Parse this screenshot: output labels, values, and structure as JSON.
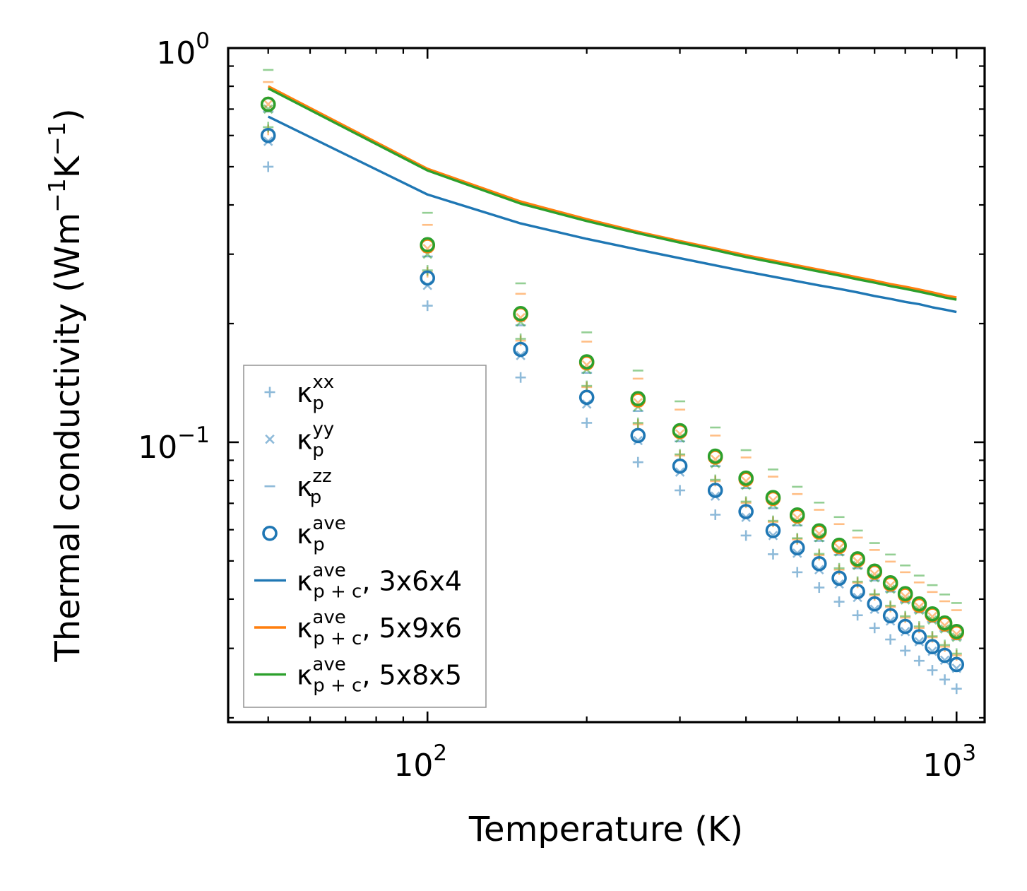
{
  "chart_data": {
    "type": "scatter",
    "xscale": "log",
    "yscale": "log",
    "xlim": [
      42,
      1130
    ],
    "ylim": [
      0.0195,
      1.0
    ],
    "xlabel": "Temperature (K)",
    "ylabel": "Thermal conductivity (Wm⁻¹K⁻¹)",
    "ylabel_parts": {
      "base": "Thermal conductivity (Wm",
      "sup1": "−1",
      "mid": "K",
      "sup2": "−1",
      "end": ")"
    },
    "xticks": [
      {
        "base": "10",
        "exp": "2",
        "value": 100
      },
      {
        "base": "10",
        "exp": "3",
        "value": 1000
      }
    ],
    "yticks": [
      {
        "base": "10",
        "exp": "0",
        "value": 1.0
      },
      {
        "base": "10",
        "exp": "−1",
        "value": 0.1
      }
    ],
    "x": [
      50,
      100,
      150,
      200,
      250,
      300,
      350,
      400,
      450,
      500,
      550,
      600,
      650,
      700,
      750,
      800,
      850,
      900,
      950,
      1000
    ],
    "colors": {
      "blue": "#1f77b4",
      "orange": "#ff7f0e",
      "green": "#2ca02c"
    },
    "series": [
      {
        "name": "kxx",
        "marker": "plus",
        "color": "blue",
        "alpha": 0.5,
        "values": [
          0.5,
          0.222,
          0.146,
          0.112,
          0.089,
          0.0755,
          0.0655,
          0.058,
          0.052,
          0.0468,
          0.0428,
          0.0394,
          0.0364,
          0.0338,
          0.0316,
          0.0296,
          0.0279,
          0.0264,
          0.025,
          0.0237
        ]
      },
      {
        "name": "kyy",
        "marker": "x",
        "color": "blue",
        "alpha": 0.5,
        "values": [
          0.58,
          0.25,
          0.166,
          0.125,
          0.101,
          0.084,
          0.073,
          0.0645,
          0.058,
          0.0523,
          0.0475,
          0.0437,
          0.0404,
          0.0377,
          0.0352,
          0.0331,
          0.0312,
          0.0295,
          0.028,
          0.0267
        ]
      },
      {
        "name": "kzz",
        "marker": "dash",
        "color": "blue",
        "alpha": 0.5,
        "values": [
          0.69,
          0.296,
          0.198,
          0.15,
          0.12,
          0.1005,
          0.087,
          0.0765,
          0.068,
          0.0615,
          0.0562,
          0.0518,
          0.0479,
          0.0446,
          0.0418,
          0.0393,
          0.037,
          0.035,
          0.0332,
          0.0316
        ]
      },
      {
        "name": "kave",
        "marker": "circle",
        "color": "blue",
        "alpha": 1.0,
        "values": [
          0.6,
          0.261,
          0.172,
          0.13,
          0.104,
          0.087,
          0.0755,
          0.0667,
          0.0597,
          0.054,
          0.0492,
          0.0452,
          0.0418,
          0.0389,
          0.0363,
          0.0341,
          0.0321,
          0.0303,
          0.0288,
          0.0273
        ]
      },
      {
        "name": "kxx",
        "marker": "plus",
        "color": "orange",
        "alpha": 0.5,
        "values": [
          0.62,
          0.27,
          0.181,
          0.138,
          0.111,
          0.0925,
          0.0797,
          0.0702,
          0.0628,
          0.0567,
          0.0517,
          0.0475,
          0.044,
          0.0409,
          0.0382,
          0.0359,
          0.0338,
          0.032,
          0.0303,
          0.0288
        ]
      },
      {
        "name": "kyy",
        "marker": "x",
        "color": "orange",
        "alpha": 0.5,
        "values": [
          0.72,
          0.31,
          0.207,
          0.157,
          0.126,
          0.105,
          0.0905,
          0.0797,
          0.0712,
          0.0643,
          0.0586,
          0.0539,
          0.0498,
          0.0463,
          0.0433,
          0.0406,
          0.0382,
          0.0361,
          0.0343,
          0.0326
        ]
      },
      {
        "name": "kzz",
        "marker": "dash",
        "color": "orange",
        "alpha": 0.5,
        "values": [
          0.82,
          0.356,
          0.238,
          0.18,
          0.145,
          0.121,
          0.104,
          0.0915,
          0.0818,
          0.0739,
          0.0674,
          0.062,
          0.0573,
          0.0533,
          0.0498,
          0.0468,
          0.0441,
          0.0417,
          0.0395,
          0.0375
        ]
      },
      {
        "name": "kave",
        "marker": "circle",
        "color": "orange",
        "alpha": 1.0,
        "values": [
          0.72,
          0.315,
          0.211,
          0.159,
          0.128,
          0.1065,
          0.0917,
          0.0806,
          0.072,
          0.065,
          0.0592,
          0.0544,
          0.0503,
          0.0468,
          0.0437,
          0.041,
          0.0386,
          0.0365,
          0.0346,
          0.0329
        ]
      },
      {
        "name": "kxx",
        "marker": "plus",
        "color": "green",
        "alpha": 0.5,
        "values": [
          0.63,
          0.273,
          0.183,
          0.139,
          0.112,
          0.0932,
          0.0803,
          0.0707,
          0.0632,
          0.0571,
          0.0521,
          0.0479,
          0.0443,
          0.0412,
          0.0385,
          0.0362,
          0.0341,
          0.0322,
          0.0306,
          0.0291
        ]
      },
      {
        "name": "kyy",
        "marker": "x",
        "color": "green",
        "alpha": 0.5,
        "values": [
          0.7,
          0.3,
          0.202,
          0.153,
          0.123,
          0.1025,
          0.0883,
          0.0778,
          0.0695,
          0.0628,
          0.0573,
          0.0527,
          0.0487,
          0.0453,
          0.0424,
          0.0398,
          0.0375,
          0.0354,
          0.0336,
          0.032
        ]
      },
      {
        "name": "kzz",
        "marker": "dash",
        "color": "green",
        "alpha": 0.5,
        "values": [
          0.88,
          0.382,
          0.253,
          0.19,
          0.152,
          0.127,
          0.109,
          0.0955,
          0.0853,
          0.0771,
          0.0703,
          0.0646,
          0.0597,
          0.0555,
          0.0519,
          0.0487,
          0.0459,
          0.0434,
          0.0411,
          0.0391
        ]
      },
      {
        "name": "kave",
        "marker": "circle",
        "color": "green",
        "alpha": 1.0,
        "values": [
          0.72,
          0.317,
          0.212,
          0.16,
          0.129,
          0.107,
          0.0922,
          0.0811,
          0.0724,
          0.0654,
          0.0596,
          0.0548,
          0.0506,
          0.0471,
          0.044,
          0.0413,
          0.0389,
          0.0367,
          0.0348,
          0.0331
        ]
      },
      {
        "name": "kpc_364",
        "marker": "line",
        "color": "blue",
        "alpha": 1.0,
        "values": [
          0.67,
          0.425,
          0.359,
          0.328,
          0.308,
          0.293,
          0.281,
          0.271,
          0.263,
          0.256,
          0.25,
          0.245,
          0.24,
          0.235,
          0.231,
          0.227,
          0.224,
          0.22,
          0.217,
          0.214
        ]
      },
      {
        "name": "kpc_596",
        "marker": "line",
        "color": "orange",
        "alpha": 1.0,
        "values": [
          0.8,
          0.494,
          0.408,
          0.368,
          0.342,
          0.324,
          0.31,
          0.298,
          0.289,
          0.281,
          0.274,
          0.268,
          0.262,
          0.257,
          0.252,
          0.248,
          0.244,
          0.24,
          0.236,
          0.233
        ]
      },
      {
        "name": "kpc_585",
        "marker": "line",
        "color": "green",
        "alpha": 1.0,
        "values": [
          0.79,
          0.489,
          0.403,
          0.364,
          0.339,
          0.321,
          0.307,
          0.295,
          0.286,
          0.278,
          0.271,
          0.265,
          0.259,
          0.254,
          0.249,
          0.245,
          0.241,
          0.237,
          0.233,
          0.23
        ]
      }
    ],
    "legend": {
      "position": "lower left",
      "entries": [
        {
          "marker": "plus",
          "color": "blue",
          "alpha": 0.5,
          "base": "κ",
          "sup": "xx",
          "sub": "p",
          "suffix": ""
        },
        {
          "marker": "x",
          "color": "blue",
          "alpha": 0.5,
          "base": "κ",
          "sup": "yy",
          "sub": "p",
          "suffix": ""
        },
        {
          "marker": "dash",
          "color": "blue",
          "alpha": 0.5,
          "base": "κ",
          "sup": "zz",
          "sub": "p",
          "suffix": ""
        },
        {
          "marker": "circle",
          "color": "blue",
          "alpha": 1.0,
          "base": "κ",
          "sup": "ave",
          "sub": "p",
          "suffix": ""
        },
        {
          "marker": "line",
          "color": "blue",
          "alpha": 1.0,
          "base": "κ",
          "sup": "ave",
          "sub": "p + c",
          "suffix": ", 3x6x4"
        },
        {
          "marker": "line",
          "color": "orange",
          "alpha": 1.0,
          "base": "κ",
          "sup": "ave",
          "sub": "p + c",
          "suffix": ", 5x9x6"
        },
        {
          "marker": "line",
          "color": "green",
          "alpha": 1.0,
          "base": "κ",
          "sup": "ave",
          "sub": "p + c",
          "suffix": ", 5x8x5"
        }
      ]
    }
  }
}
